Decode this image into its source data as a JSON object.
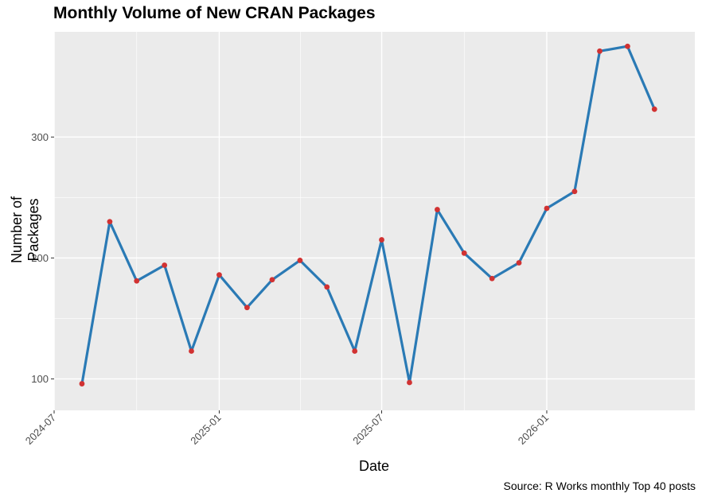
{
  "chart_data": {
    "type": "line",
    "title": "Monthly Volume of New CRAN Packages",
    "xlabel": "Date",
    "ylabel": "Number of Packages",
    "caption": "Source: R Works monthly Top 40 posts",
    "x_ticks": [
      "2024-07",
      "2025-01",
      "2025-07",
      "2026-01"
    ],
    "y_ticks": [
      100,
      200,
      300
    ],
    "ylim": [
      74,
      387
    ],
    "xlim": [
      "2024-07-01",
      "2026-06-15"
    ],
    "grid": true,
    "series": [
      {
        "x": [
          "2024-08",
          "2024-09",
          "2024-10",
          "2024-11",
          "2024-12",
          "2025-01",
          "2025-02",
          "2025-03",
          "2025-04",
          "2025-05",
          "2025-06",
          "2025-07",
          "2025-08",
          "2025-09",
          "2025-10",
          "2025-11",
          "2025-12",
          "2026-01",
          "2026-02",
          "2026-03",
          "2026-04",
          "2026-05"
        ],
        "values": [
          96,
          230,
          181,
          194,
          123,
          186,
          159,
          182,
          198,
          176,
          123,
          215,
          97,
          240,
          204,
          183,
          196,
          241,
          255,
          371,
          375,
          323
        ]
      }
    ],
    "colors": {
      "line": "#2a7ab5",
      "points": "#d13232",
      "panel": "#ebebeb",
      "grid": "#ffffff"
    }
  }
}
